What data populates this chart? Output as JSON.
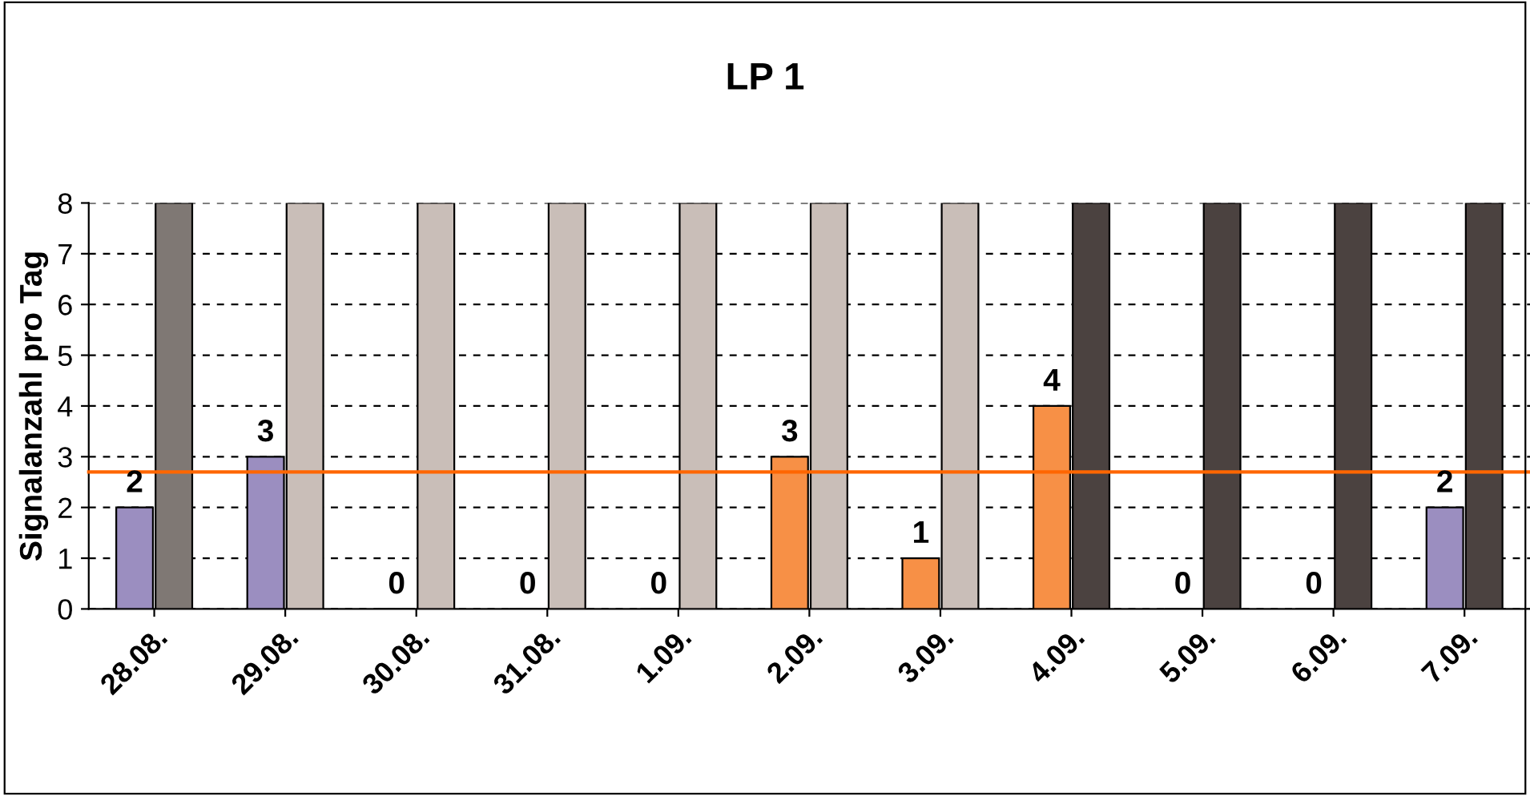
{
  "chart_data": {
    "type": "bar",
    "title": "LP 1",
    "ylabel": "Signalanzahl pro Tag",
    "categories": [
      "28.08.",
      "29.08.",
      "30.08.",
      "31.08.",
      "1.09.",
      "2.09.",
      "3.09.",
      "4.09.",
      "5.09.",
      "6.09.",
      "7.09."
    ],
    "series": [
      {
        "colors": [
          "#9b8ec0",
          "#9b8ec0",
          "#9b8ec0",
          "#9b8ec0",
          "#9b8ec0",
          "#f79046",
          "#f79046",
          "#f79046",
          "#9b8ec0",
          "#9b8ec0",
          "#9b8ec0"
        ],
        "values": [
          2,
          3,
          0,
          0,
          0,
          3,
          1,
          4,
          0,
          0,
          2
        ],
        "value_labels": [
          "2",
          "3",
          "0",
          "0",
          "0",
          "3",
          "1",
          "4",
          "0",
          "0",
          "2"
        ]
      },
      {
        "colors": [
          "#7f7874",
          "#c9beb8",
          "#c9beb8",
          "#c9beb8",
          "#c9beb8",
          "#c9beb8",
          "#c9beb8",
          "#4b4240",
          "#4b4240",
          "#4b4240",
          "#4b4240"
        ],
        "values": [
          8,
          8,
          8,
          8,
          8,
          8,
          8,
          8,
          8,
          8,
          8
        ]
      }
    ],
    "ylim": [
      0,
      8
    ],
    "yticks": [
      0,
      1,
      2,
      3,
      4,
      5,
      6,
      7,
      8
    ],
    "grid": "y",
    "legend": false,
    "ref_lines": [
      {
        "axis": "y",
        "value": 2.7,
        "color": "#ff6600"
      }
    ]
  }
}
